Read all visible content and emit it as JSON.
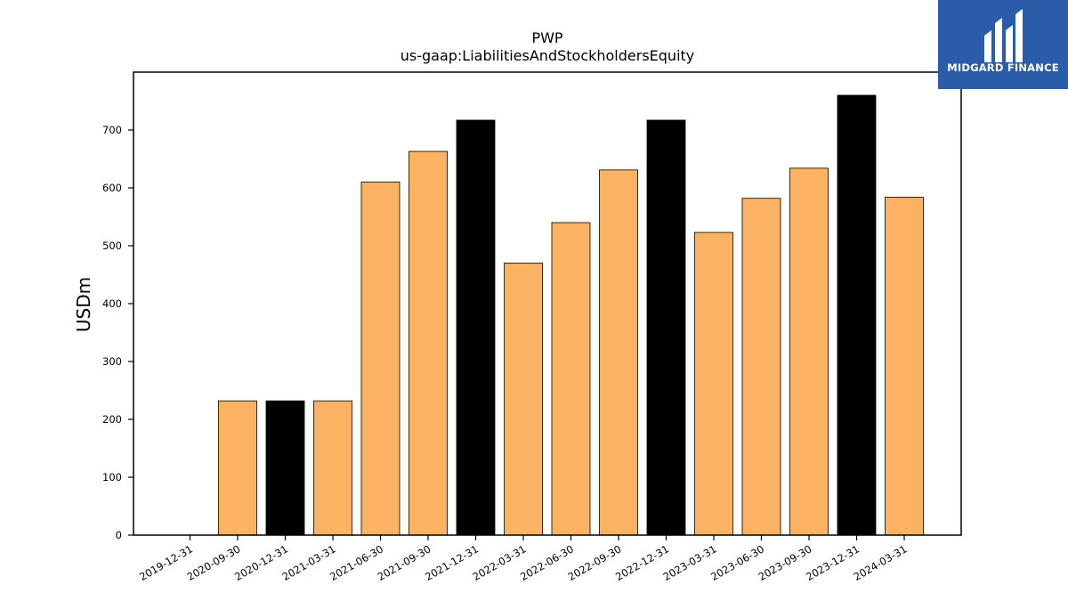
{
  "logo": {
    "text": "MIDGARD FINANCE",
    "bg_color": "#2a5caa"
  },
  "chart_data": {
    "type": "bar",
    "title": "PWP",
    "subtitle": "us-gaap:LiabilitiesAndStockholdersEquity",
    "xlabel": "",
    "ylabel": "USDm",
    "ylim": [
      0,
      800
    ],
    "yticks": [
      0,
      100,
      200,
      300,
      400,
      500,
      600,
      700
    ],
    "grid": false,
    "colors": {
      "quarter": "#fbb262",
      "year_end": "#000000",
      "edge": "#000000"
    },
    "categories": [
      "2019-12-31",
      "2020-09-30",
      "2020-12-31",
      "2021-03-31",
      "2021-06-30",
      "2021-09-30",
      "2021-12-31",
      "2022-03-31",
      "2022-06-30",
      "2022-09-30",
      "2022-12-31",
      "2023-03-31",
      "2023-06-30",
      "2023-09-30",
      "2023-12-31",
      "2024-03-31"
    ],
    "values": [
      0,
      232,
      232,
      232,
      610,
      663,
      717,
      470,
      540,
      631,
      717,
      523,
      582,
      634,
      760,
      584
    ],
    "highlight": [
      true,
      false,
      true,
      false,
      false,
      false,
      true,
      false,
      false,
      false,
      true,
      false,
      false,
      false,
      true,
      false
    ]
  }
}
